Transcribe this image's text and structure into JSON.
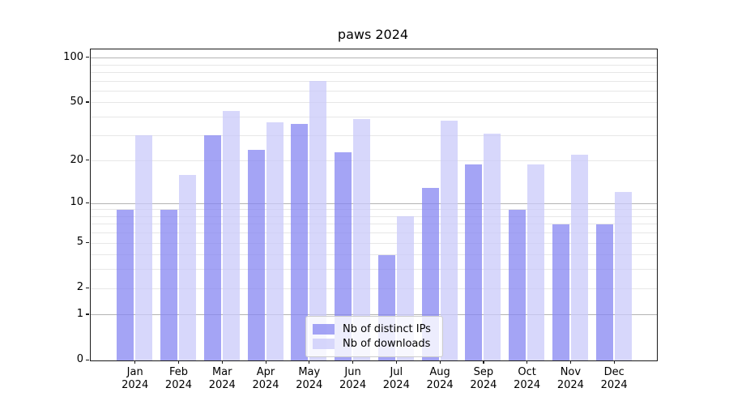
{
  "chart_data": {
    "type": "bar",
    "title": "paws 2024",
    "categories": [
      "Jan 2024",
      "Feb 2024",
      "Mar 2024",
      "Apr 2024",
      "May 2024",
      "Jun 2024",
      "Jul 2024",
      "Aug 2024",
      "Sep 2024",
      "Oct 2024",
      "Nov 2024",
      "Dec 2024"
    ],
    "x_tick_months": [
      "Jan",
      "Feb",
      "Mar",
      "Apr",
      "May",
      "Jun",
      "Jul",
      "Aug",
      "Sep",
      "Oct",
      "Nov",
      "Dec"
    ],
    "x_tick_year": "2024",
    "series": [
      {
        "name": "Nb of distinct IPs",
        "color": "#8686f2",
        "fill_alpha": 0.75,
        "values": [
          9,
          9,
          30,
          24,
          36,
          23,
          4,
          13,
          19,
          9,
          7,
          7
        ]
      },
      {
        "name": "Nb of downloads",
        "color": "#cacafa",
        "fill_alpha": 0.75,
        "values": [
          30,
          16,
          44,
          37,
          70,
          39,
          8,
          38,
          31,
          19,
          22,
          12
        ]
      }
    ],
    "yscale": "log1p",
    "ylim": [
      0,
      115
    ],
    "y_ticks": [
      0,
      1,
      2,
      5,
      10,
      20,
      50,
      100
    ],
    "y_major_gridlines": [
      1,
      10,
      100
    ],
    "y_minor_gridlines": [
      2,
      3,
      4,
      5,
      6,
      7,
      8,
      9,
      20,
      30,
      40,
      50,
      60,
      70,
      80,
      90
    ],
    "grid": true,
    "legend_position": "lower center"
  },
  "colors": {
    "grid_major": "#b3b3b3",
    "grid_minor": "#e7e7e7",
    "axis": "#1a1a1a",
    "legend_border": "#cccccc"
  }
}
